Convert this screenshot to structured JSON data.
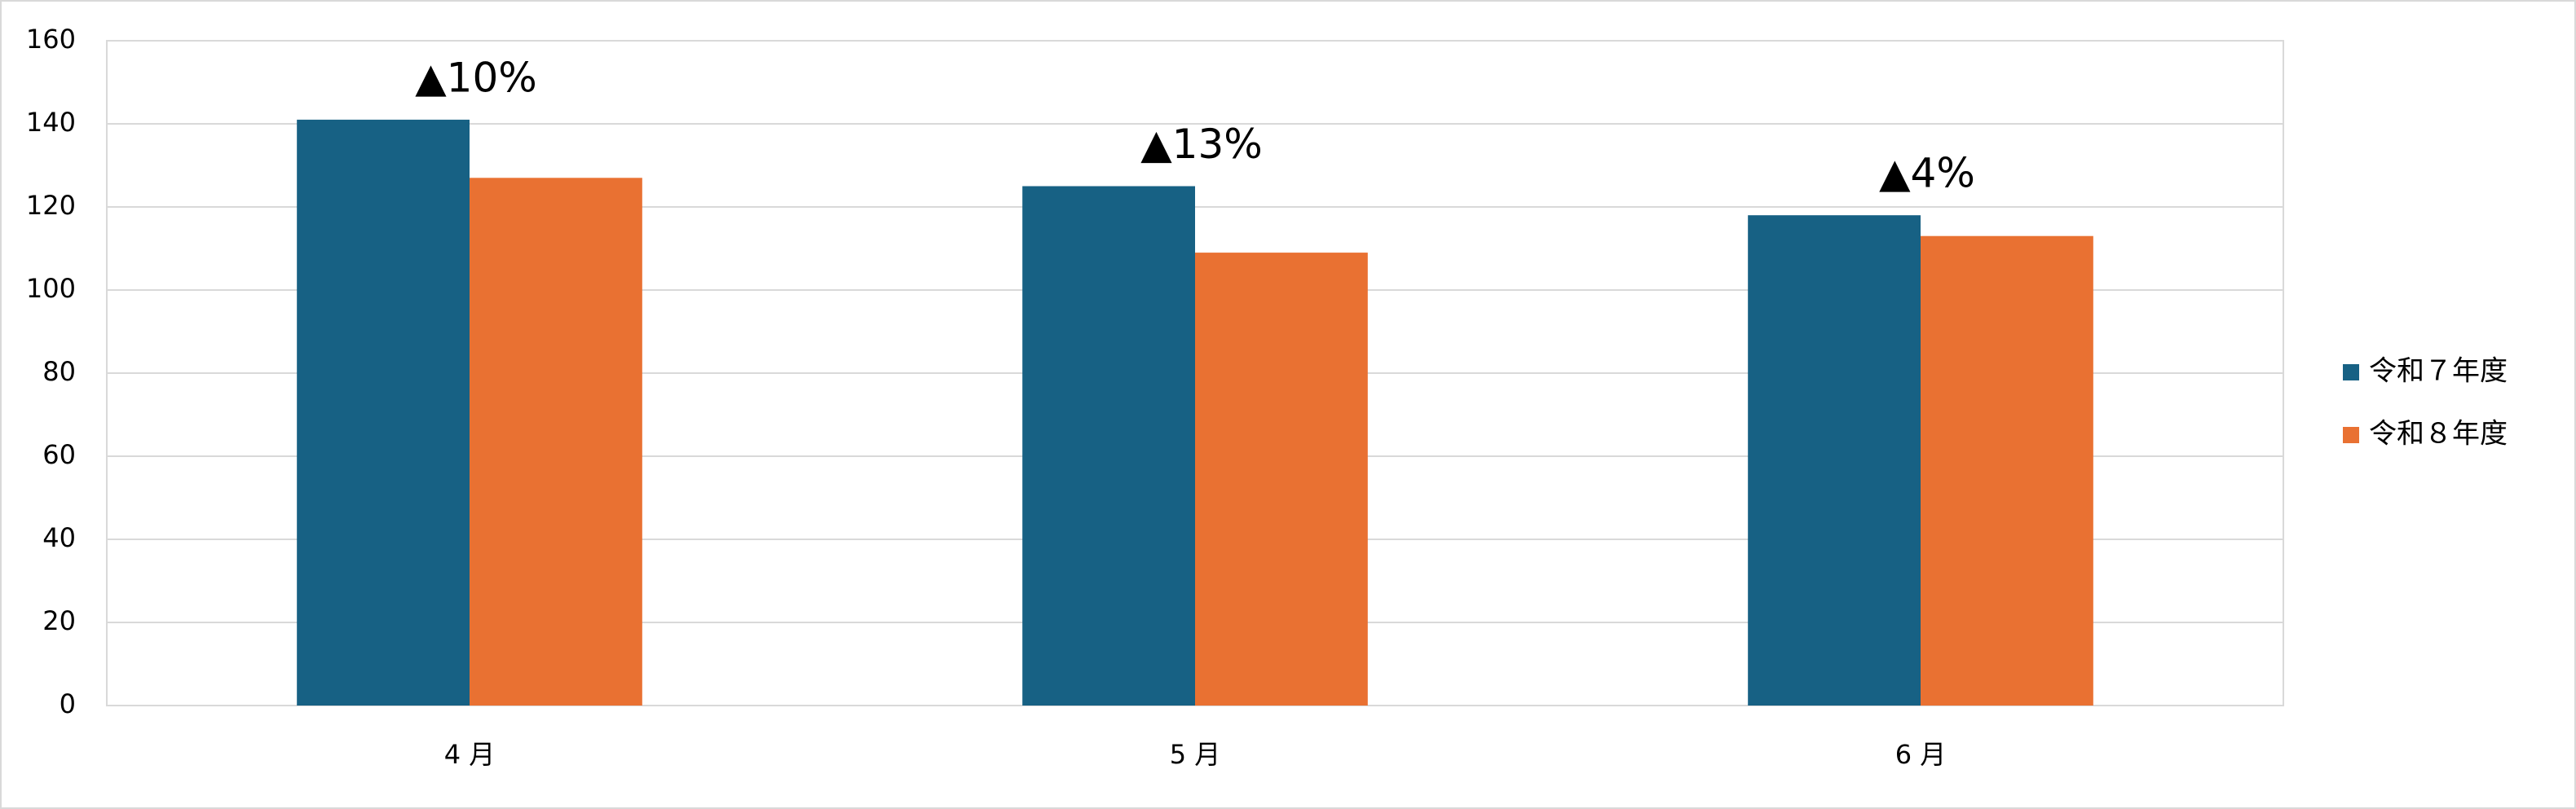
{
  "chart_data": {
    "type": "bar",
    "categories": [
      "4 月",
      "5 月",
      "6 月"
    ],
    "series": [
      {
        "name": "令和７年度",
        "color": "#176184",
        "values": [
          141,
          125,
          118
        ]
      },
      {
        "name": "令和８年度",
        "color": "#e97132",
        "values": [
          127,
          109,
          113
        ]
      }
    ],
    "annotations": [
      "▲10%",
      "▲13%",
      "▲4%"
    ],
    "ylim": [
      0,
      160
    ],
    "yticks": [
      0,
      20,
      40,
      60,
      80,
      100,
      120,
      140,
      160
    ],
    "grid": true,
    "legend": "right"
  }
}
